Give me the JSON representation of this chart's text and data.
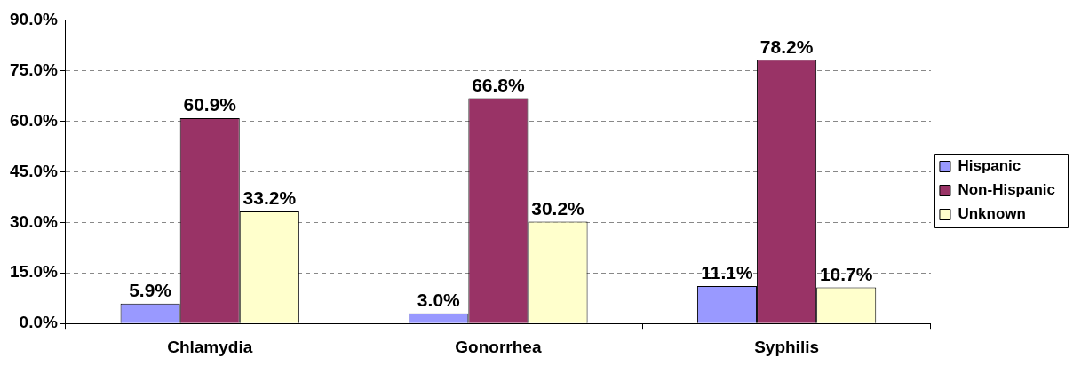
{
  "chart_data": {
    "type": "bar",
    "categories": [
      "Chlamydia",
      "Gonorrhea",
      "Syphilis"
    ],
    "series": [
      {
        "name": "Hispanic",
        "color": "#9999ff",
        "values": [
          5.9,
          3.0,
          11.1
        ],
        "value_labels": [
          "5.9%",
          "3.0%",
          "11.1%"
        ]
      },
      {
        "name": "Non-Hispanic",
        "color": "#993366",
        "values": [
          60.9,
          66.8,
          78.2
        ],
        "value_labels": [
          "60.9%",
          "66.8%",
          "78.2%"
        ]
      },
      {
        "name": "Unknown",
        "color": "#ffffcc",
        "values": [
          33.2,
          30.2,
          10.7
        ],
        "value_labels": [
          "33.2%",
          "30.2%",
          "10.7%"
        ]
      }
    ],
    "ylim": [
      0,
      90
    ],
    "yticks": [
      {
        "value": 0,
        "label": "0.0%"
      },
      {
        "value": 15,
        "label": "15.0%"
      },
      {
        "value": 30,
        "label": "30.0%"
      },
      {
        "value": 45,
        "label": "45.0%"
      },
      {
        "value": 60,
        "label": "60.0%"
      },
      {
        "value": 75,
        "label": "75.0%"
      },
      {
        "value": 90,
        "label": "90.0%"
      }
    ],
    "grid": "y",
    "line_style": "dashed",
    "legend": "right"
  }
}
